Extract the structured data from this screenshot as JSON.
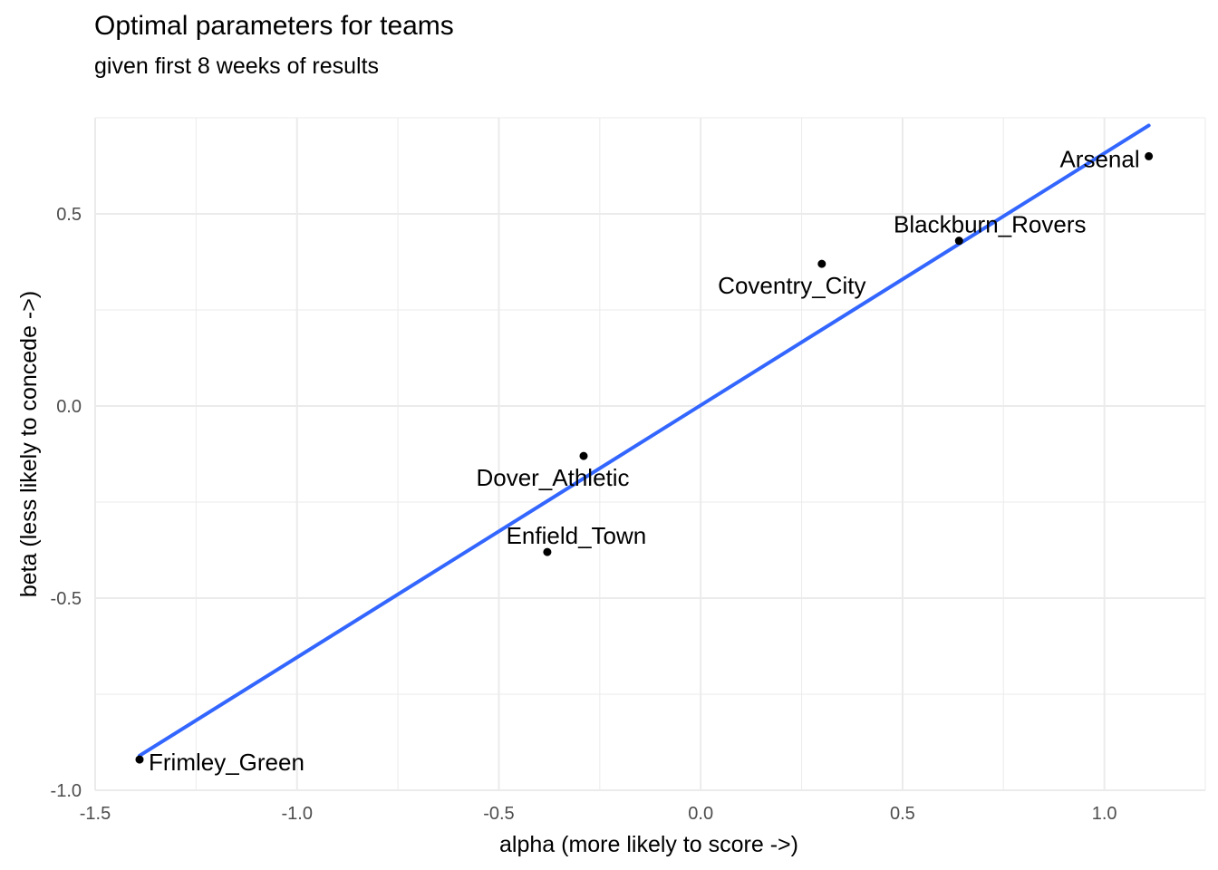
{
  "chart_data": {
    "type": "scatter",
    "title": "Optimal parameters for teams",
    "subtitle": "given first 8 weeks of results",
    "xlabel": "alpha (more likely to score ->)",
    "ylabel": "beta (less likely to concede ->)",
    "xlim": [
      -1.5,
      1.25
    ],
    "ylim": [
      -1.0,
      0.75
    ],
    "x_ticks": [
      -1.5,
      -1.0,
      -0.5,
      0.0,
      0.5,
      1.0
    ],
    "x_tick_labels": [
      "-1.5",
      "-1.0",
      "-0.5",
      "0.0",
      "0.5",
      "1.0"
    ],
    "y_ticks": [
      -1.0,
      -0.5,
      0.0,
      0.5
    ],
    "y_tick_labels": [
      "-1.0",
      "-0.5",
      "0.0",
      "0.5"
    ],
    "grid": true,
    "points": [
      {
        "label": "Arsenal",
        "x": 1.11,
        "y": 0.65
      },
      {
        "label": "Blackburn_Rovers",
        "x": 0.64,
        "y": 0.43
      },
      {
        "label": "Coventry_City",
        "x": 0.3,
        "y": 0.37
      },
      {
        "label": "Dover_Athletic",
        "x": -0.29,
        "y": -0.13
      },
      {
        "label": "Enfield_Town",
        "x": -0.38,
        "y": -0.38
      },
      {
        "label": "Frimley_Green",
        "x": -1.39,
        "y": -0.92
      }
    ],
    "fit_line": {
      "x": [
        -1.39,
        1.11
      ],
      "y": [
        -0.91,
        0.73
      ]
    },
    "colors": {
      "points": "#000000",
      "fit_line": "#3366ff",
      "grid": "#ebebeb",
      "tick_text": "#4d4d4d"
    }
  }
}
